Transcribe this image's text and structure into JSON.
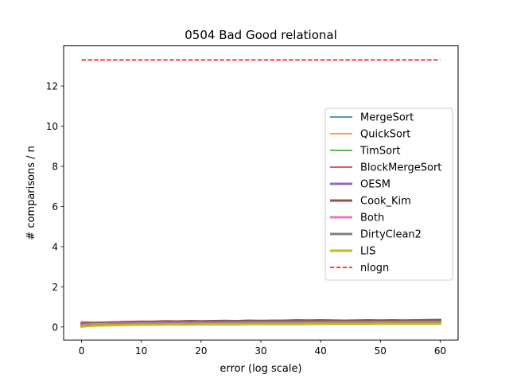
{
  "chart_data": {
    "type": "line",
    "title": "0504 Bad Good relational",
    "xlabel": "error (log scale)",
    "ylabel": "# comparisons / n",
    "xlim": [
      -3,
      63
    ],
    "ylim": [
      -0.65,
      14.0
    ],
    "xticks": [
      0,
      10,
      20,
      30,
      40,
      50,
      60
    ],
    "yticks": [
      0,
      2,
      4,
      6,
      8,
      10,
      12
    ],
    "grid": false,
    "legend_position": "center-right",
    "x": [
      0,
      2,
      4,
      6,
      8,
      10,
      12,
      14,
      16,
      18,
      20,
      22,
      24,
      26,
      28,
      30,
      32,
      34,
      36,
      38,
      40,
      42,
      44,
      46,
      48,
      50,
      52,
      54,
      56,
      58,
      60
    ],
    "series": [
      {
        "name": "MergeSort",
        "color": "#1f77b4",
        "width": 1.5,
        "dash": "",
        "values": [
          0.2,
          0.21,
          0.22,
          0.23,
          0.24,
          0.24,
          0.25,
          0.25,
          0.26,
          0.26,
          0.26,
          0.27,
          0.27,
          0.27,
          0.28,
          0.28,
          0.28,
          0.28,
          0.29,
          0.29,
          0.29,
          0.29,
          0.3,
          0.3,
          0.3,
          0.3,
          0.3,
          0.31,
          0.31,
          0.31,
          0.31
        ]
      },
      {
        "name": "QuickSort",
        "color": "#ff7f0e",
        "width": 1.5,
        "dash": "",
        "values": [
          0.27,
          0.24,
          0.25,
          0.26,
          0.27,
          0.26,
          0.27,
          0.28,
          0.27,
          0.28,
          0.29,
          0.28,
          0.29,
          0.29,
          0.3,
          0.29,
          0.3,
          0.3,
          0.31,
          0.3,
          0.31,
          0.31,
          0.31,
          0.31,
          0.32,
          0.31,
          0.32,
          0.32,
          0.32,
          0.33,
          0.33
        ]
      },
      {
        "name": "TimSort",
        "color": "#2ca02c",
        "width": 1.5,
        "dash": "",
        "values": [
          0.08,
          0.12,
          0.14,
          0.15,
          0.16,
          0.17,
          0.17,
          0.18,
          0.18,
          0.19,
          0.19,
          0.19,
          0.2,
          0.2,
          0.2,
          0.2,
          0.21,
          0.21,
          0.21,
          0.21,
          0.21,
          0.22,
          0.22,
          0.22,
          0.22,
          0.22,
          0.22,
          0.23,
          0.23,
          0.23,
          0.23
        ]
      },
      {
        "name": "BlockMergeSort",
        "color": "#d62728",
        "width": 1.5,
        "dash": "",
        "values": [
          0.15,
          0.18,
          0.2,
          0.22,
          0.23,
          0.24,
          0.24,
          0.25,
          0.25,
          0.26,
          0.26,
          0.27,
          0.27,
          0.27,
          0.28,
          0.28,
          0.28,
          0.29,
          0.29,
          0.29,
          0.29,
          0.3,
          0.3,
          0.3,
          0.3,
          0.31,
          0.31,
          0.31,
          0.31,
          0.31,
          0.32
        ]
      },
      {
        "name": "OESM",
        "color": "#9467bd",
        "width": 3,
        "dash": "",
        "values": [
          0.17,
          0.19,
          0.21,
          0.23,
          0.24,
          0.25,
          0.25,
          0.26,
          0.26,
          0.27,
          0.27,
          0.27,
          0.28,
          0.28,
          0.28,
          0.29,
          0.29,
          0.29,
          0.29,
          0.3,
          0.3,
          0.3,
          0.3,
          0.31,
          0.31,
          0.31,
          0.31,
          0.31,
          0.32,
          0.32,
          0.32
        ]
      },
      {
        "name": "Cook_Kim",
        "color": "#8c564b",
        "width": 3,
        "dash": "",
        "values": [
          0.16,
          0.19,
          0.21,
          0.23,
          0.25,
          0.26,
          0.26,
          0.28,
          0.27,
          0.29,
          0.28,
          0.29,
          0.3,
          0.29,
          0.31,
          0.3,
          0.31,
          0.31,
          0.33,
          0.32,
          0.33,
          0.32,
          0.31,
          0.32,
          0.33,
          0.32,
          0.33,
          0.32,
          0.33,
          0.34,
          0.35
        ]
      },
      {
        "name": "Both",
        "color": "#e377c2",
        "width": 3,
        "dash": "",
        "values": [
          0.1,
          0.13,
          0.15,
          0.16,
          0.17,
          0.18,
          0.18,
          0.19,
          0.19,
          0.2,
          0.2,
          0.2,
          0.21,
          0.21,
          0.21,
          0.21,
          0.22,
          0.22,
          0.22,
          0.22,
          0.22,
          0.23,
          0.23,
          0.23,
          0.23,
          0.23,
          0.23,
          0.24,
          0.24,
          0.24,
          0.24
        ]
      },
      {
        "name": "DirtyClean2",
        "color": "#7f7f7f",
        "width": 3,
        "dash": "",
        "values": [
          0.05,
          0.08,
          0.1,
          0.12,
          0.13,
          0.14,
          0.14,
          0.15,
          0.15,
          0.16,
          0.16,
          0.16,
          0.17,
          0.17,
          0.17,
          0.17,
          0.18,
          0.18,
          0.18,
          0.18,
          0.18,
          0.19,
          0.19,
          0.19,
          0.19,
          0.19,
          0.19,
          0.2,
          0.2,
          0.2,
          0.2
        ]
      },
      {
        "name": "LIS",
        "color": "#bcbd22",
        "width": 3,
        "dash": "",
        "values": [
          0.02,
          0.06,
          0.08,
          0.09,
          0.1,
          0.11,
          0.11,
          0.12,
          0.12,
          0.12,
          0.13,
          0.13,
          0.13,
          0.13,
          0.14,
          0.14,
          0.14,
          0.14,
          0.14,
          0.15,
          0.15,
          0.15,
          0.15,
          0.15,
          0.15,
          0.16,
          0.16,
          0.16,
          0.16,
          0.16,
          0.16
        ]
      },
      {
        "name": "nlogn",
        "color": "#ff0000",
        "width": 1.5,
        "dash": "dashed",
        "values": [
          13.3,
          13.3,
          13.3,
          13.3,
          13.3,
          13.3,
          13.3,
          13.3,
          13.3,
          13.3,
          13.3,
          13.3,
          13.3,
          13.3,
          13.3,
          13.3,
          13.3,
          13.3,
          13.3,
          13.3,
          13.3,
          13.3,
          13.3,
          13.3,
          13.3,
          13.3,
          13.3,
          13.3,
          13.3,
          13.3,
          13.3
        ]
      }
    ]
  }
}
